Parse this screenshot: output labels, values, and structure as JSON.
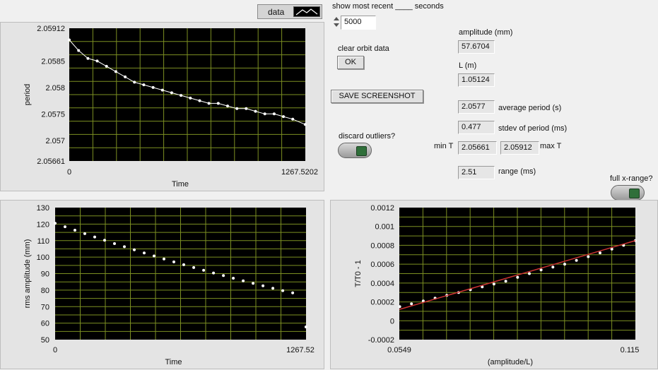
{
  "legend": {
    "label": "data",
    "icon": "line-plot-icon"
  },
  "recent": {
    "label": "show most recent ____ seconds",
    "value": "5000"
  },
  "clear_orbit": {
    "label": "clear orbit data",
    "button": "OK"
  },
  "save_screenshot": "SAVE SCREENSHOT",
  "discard_outliers": {
    "label": "discard outliers?",
    "state": "off"
  },
  "full_x_range": {
    "label": "full x-range?",
    "state": "off"
  },
  "amplitude": {
    "label": "amplitude (mm)",
    "value": "57.6704"
  },
  "length": {
    "label": "L (m)",
    "value": "1.05124"
  },
  "average_period": {
    "label": "average period (s)",
    "value": "2.0577"
  },
  "stdev_period": {
    "label": "stdev of period (ms)",
    "value": "0.477"
  },
  "min_t": {
    "label": "min T",
    "value": "2.05661"
  },
  "max_t": {
    "label": "max T",
    "value": "2.05912"
  },
  "range": {
    "label": "range (ms)",
    "value": "2.51"
  },
  "colors": {
    "plot_bg": "#000000",
    "grid": "#7c8f22",
    "points": "#ffffff",
    "fit_line": "#cc3333"
  },
  "chart_data": [
    {
      "type": "line",
      "name": "period-plot",
      "xlabel": "Time",
      "ylabel": "period",
      "xlim": [
        0,
        1267.5202
      ],
      "ylim": [
        2.05661,
        2.05912
      ],
      "x_ticks": [
        "0",
        "1267.5202"
      ],
      "y_ticks": [
        "2.05912",
        "2.0585",
        "2.058",
        "2.0575",
        "2.057",
        "2.05661"
      ],
      "y_tick_values": [
        2.05912,
        2.0585,
        2.058,
        2.0575,
        2.057,
        2.05661
      ],
      "grid": true,
      "x": [
        0,
        50,
        100,
        150,
        200,
        250,
        300,
        350,
        400,
        450,
        500,
        550,
        600,
        650,
        700,
        750,
        800,
        850,
        900,
        950,
        1000,
        1050,
        1100,
        1150,
        1200,
        1267
      ],
      "values": [
        2.0589,
        2.0587,
        2.05855,
        2.0585,
        2.0584,
        2.0583,
        2.0582,
        2.0581,
        2.05805,
        2.058,
        2.05795,
        2.0579,
        2.05785,
        2.0578,
        2.05775,
        2.0577,
        2.0577,
        2.05765,
        2.0576,
        2.0576,
        2.05755,
        2.0575,
        2.0575,
        2.05745,
        2.0574,
        2.0573
      ]
    },
    {
      "type": "scatter",
      "name": "amplitude-plot",
      "xlabel": "Time",
      "ylabel": "rms amplitude (mm)",
      "xlim": [
        0,
        1267.52
      ],
      "ylim": [
        50,
        130
      ],
      "x_ticks": [
        "0",
        "1267.52"
      ],
      "y_ticks": [
        "130",
        "120",
        "110",
        "100",
        "90",
        "80",
        "70",
        "60",
        "50"
      ],
      "y_tick_values": [
        130,
        120,
        110,
        100,
        90,
        80,
        70,
        60,
        50
      ],
      "grid": true,
      "x": [
        0,
        50,
        100,
        150,
        200,
        250,
        300,
        350,
        400,
        450,
        500,
        550,
        600,
        650,
        700,
        750,
        800,
        850,
        900,
        950,
        1000,
        1050,
        1100,
        1150,
        1200,
        1267
      ],
      "values": [
        120.5,
        118.4,
        116.3,
        114.2,
        112.2,
        110.2,
        108.2,
        106.3,
        104.4,
        102.5,
        100.7,
        98.9,
        97.1,
        95.4,
        93.7,
        92.0,
        90.4,
        88.8,
        87.2,
        85.6,
        84.1,
        82.6,
        81.1,
        79.7,
        78.3,
        57.7
      ]
    },
    {
      "type": "scatter",
      "name": "relative-period-plot",
      "xlabel": "(amplitude/L)",
      "ylabel": "T/T0 - 1",
      "xlim": [
        0.0549,
        0.115
      ],
      "ylim": [
        -0.0002,
        0.0012
      ],
      "x_ticks": [
        "0.0549",
        "0.115"
      ],
      "y_ticks": [
        "0.0012",
        "0.001",
        "0.0008",
        "0.0006",
        "0.0004",
        "0.0002",
        "0",
        "-0.0002"
      ],
      "y_tick_values": [
        0.0012,
        0.001,
        0.0008,
        0.0006,
        0.0004,
        0.0002,
        0,
        -0.0002
      ],
      "grid": true,
      "fit_line": {
        "x": [
          0.0549,
          0.115
        ],
        "y": [
          0.00012,
          0.00085
        ]
      },
      "x": [
        0.055,
        0.058,
        0.061,
        0.064,
        0.067,
        0.07,
        0.073,
        0.076,
        0.079,
        0.082,
        0.085,
        0.088,
        0.091,
        0.094,
        0.097,
        0.1,
        0.103,
        0.106,
        0.109,
        0.112,
        0.115
      ],
      "values": [
        0.00015,
        0.00018,
        0.00021,
        0.00024,
        0.00027,
        0.0003,
        0.00033,
        0.00036,
        0.00039,
        0.00042,
        0.00046,
        0.0005,
        0.00054,
        0.00057,
        0.0006,
        0.00064,
        0.00068,
        0.00072,
        0.00076,
        0.0008,
        0.00085
      ]
    }
  ]
}
